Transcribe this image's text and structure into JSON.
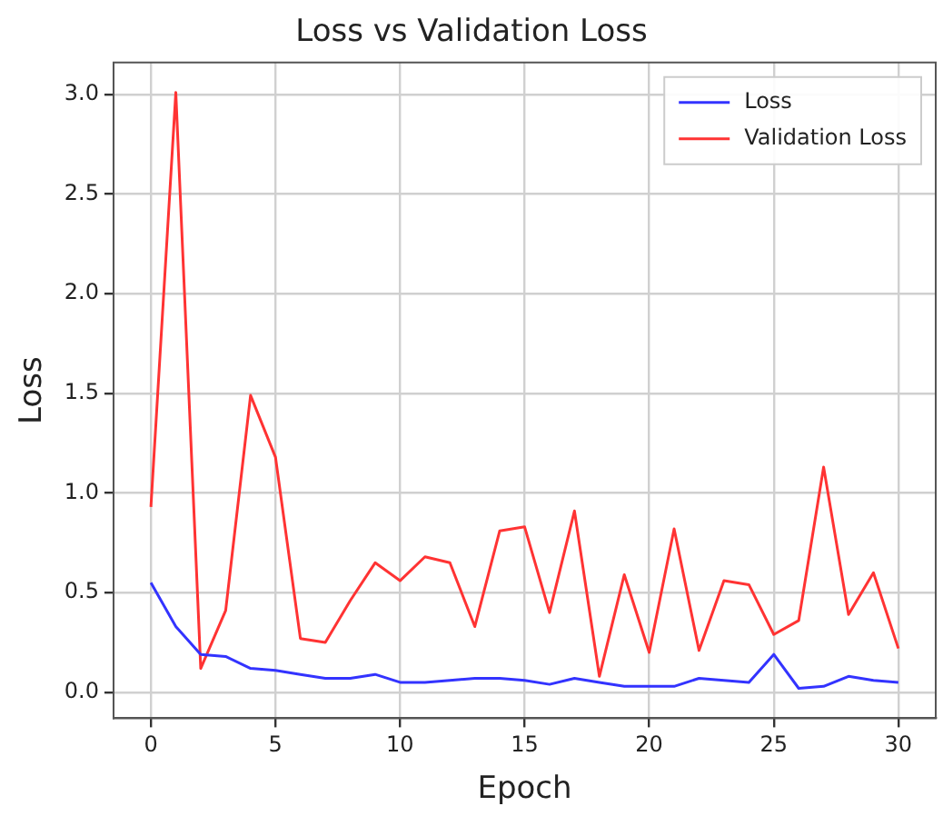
{
  "chart_data": {
    "type": "line",
    "title": "Loss vs Validation Loss",
    "xlabel": "Epoch",
    "ylabel": "Loss",
    "x": [
      0,
      1,
      2,
      3,
      4,
      5,
      6,
      7,
      8,
      9,
      10,
      11,
      12,
      13,
      14,
      15,
      16,
      17,
      18,
      19,
      20,
      21,
      22,
      23,
      24,
      25,
      26,
      27,
      28,
      29,
      30
    ],
    "series": [
      {
        "name": "Loss",
        "color": "#3333ff",
        "values": [
          0.55,
          0.33,
          0.19,
          0.18,
          0.12,
          0.11,
          0.09,
          0.07,
          0.07,
          0.09,
          0.05,
          0.05,
          0.06,
          0.07,
          0.07,
          0.06,
          0.04,
          0.07,
          0.05,
          0.03,
          0.03,
          0.03,
          0.07,
          0.06,
          0.05,
          0.19,
          0.02,
          0.03,
          0.08,
          0.06,
          0.05
        ]
      },
      {
        "name": "Validation Loss",
        "color": "#ff3333",
        "values": [
          0.93,
          3.01,
          0.12,
          0.41,
          1.49,
          1.18,
          0.27,
          0.25,
          0.46,
          0.65,
          0.56,
          0.68,
          0.65,
          0.33,
          0.81,
          0.83,
          0.4,
          0.91,
          0.08,
          0.59,
          0.2,
          0.82,
          0.21,
          0.56,
          0.54,
          0.29,
          0.36,
          1.13,
          0.39,
          0.6,
          0.22
        ]
      }
    ],
    "xlim": [
      -1.5,
      31.5
    ],
    "ylim": [
      -0.13,
      3.16
    ],
    "xticks": [
      0,
      5,
      10,
      15,
      20,
      25,
      30
    ],
    "yticks": [
      {
        "value": 0,
        "label": "0.0"
      },
      {
        "value": 0.5,
        "label": "0.5"
      },
      {
        "value": 1,
        "label": "1.0"
      },
      {
        "value": 1.5,
        "label": "1.5"
      },
      {
        "value": 2,
        "label": "2.0"
      },
      {
        "value": 2.5,
        "label": "2.5"
      },
      {
        "value": 3,
        "label": "3.0"
      }
    ],
    "grid": true,
    "legend": "top right"
  }
}
